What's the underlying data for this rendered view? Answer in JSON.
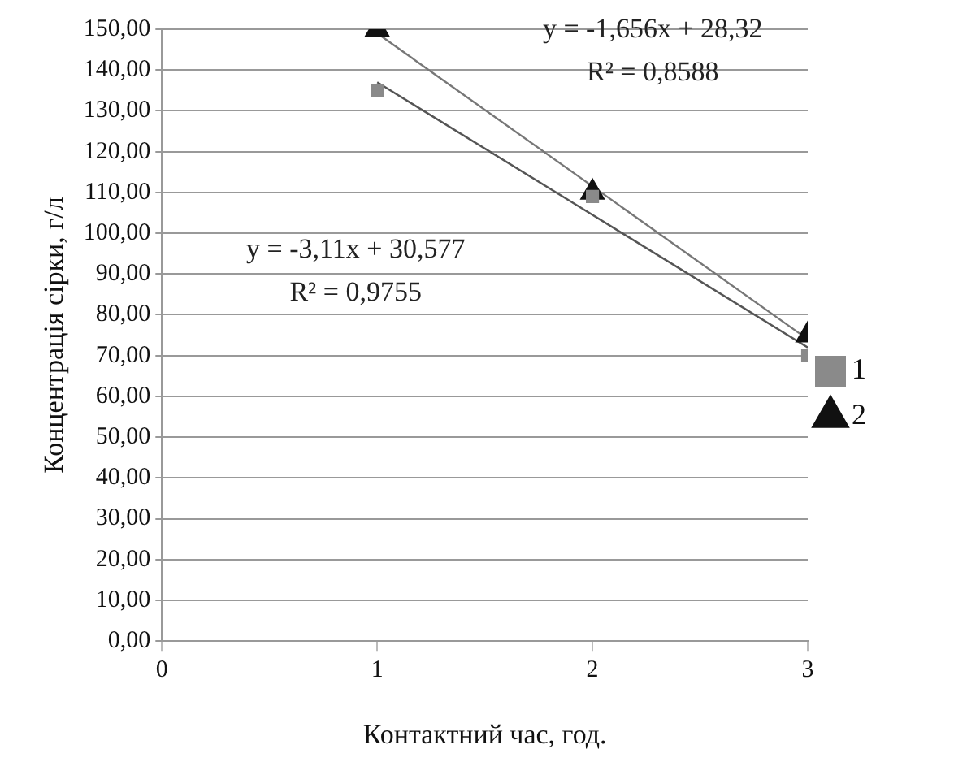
{
  "chart_data": {
    "type": "scatter",
    "xlabel": "Контактний час, год.",
    "ylabel": "Концентрація сірки, г/л",
    "series": [
      {
        "name": "1",
        "color": "#8a8a8a",
        "marker": "square",
        "x": [
          1,
          2,
          3
        ],
        "values": [
          135,
          109,
          70
        ]
      },
      {
        "name": "2",
        "color": "#111111",
        "marker": "triangle",
        "x": [
          1,
          2,
          3
        ],
        "values": [
          150,
          110,
          75
        ]
      },
      {
        "type": "line",
        "color": "#555555",
        "x": [
          1,
          3
        ],
        "values": [
          137,
          72
        ]
      },
      {
        "type": "line",
        "color": "#777777",
        "x": [
          1,
          3
        ],
        "values": [
          149,
          74
        ]
      }
    ],
    "xlim": [
      0,
      3
    ],
    "xticks": [
      0,
      1,
      2,
      3
    ],
    "ylim": [
      0,
      150
    ],
    "yticks": [
      {
        "value": 0,
        "label": "0,00"
      },
      {
        "value": 10,
        "label": "10,00"
      },
      {
        "value": 20,
        "label": "20,00"
      },
      {
        "value": 30,
        "label": "30,00"
      },
      {
        "value": 40,
        "label": "40,00"
      },
      {
        "value": 50,
        "label": "50,00"
      },
      {
        "value": 60,
        "label": "60,00"
      },
      {
        "value": 70,
        "label": "70,00"
      },
      {
        "value": 80,
        "label": "80,00"
      },
      {
        "value": 90,
        "label": "90,00"
      },
      {
        "value": 100,
        "label": "100,00"
      },
      {
        "value": 110,
        "label": "110,00"
      },
      {
        "value": 120,
        "label": "120,00"
      },
      {
        "value": 130,
        "label": "130,00"
      },
      {
        "value": 140,
        "label": "140,00"
      },
      {
        "value": 150,
        "label": "150,00"
      }
    ],
    "annotations": [
      "y = -1,656x + 28,32",
      "R² = 0,8588",
      "y = -3,11x + 30,577",
      "R² = 0,9755"
    ],
    "grid": "y",
    "legend": "right"
  }
}
